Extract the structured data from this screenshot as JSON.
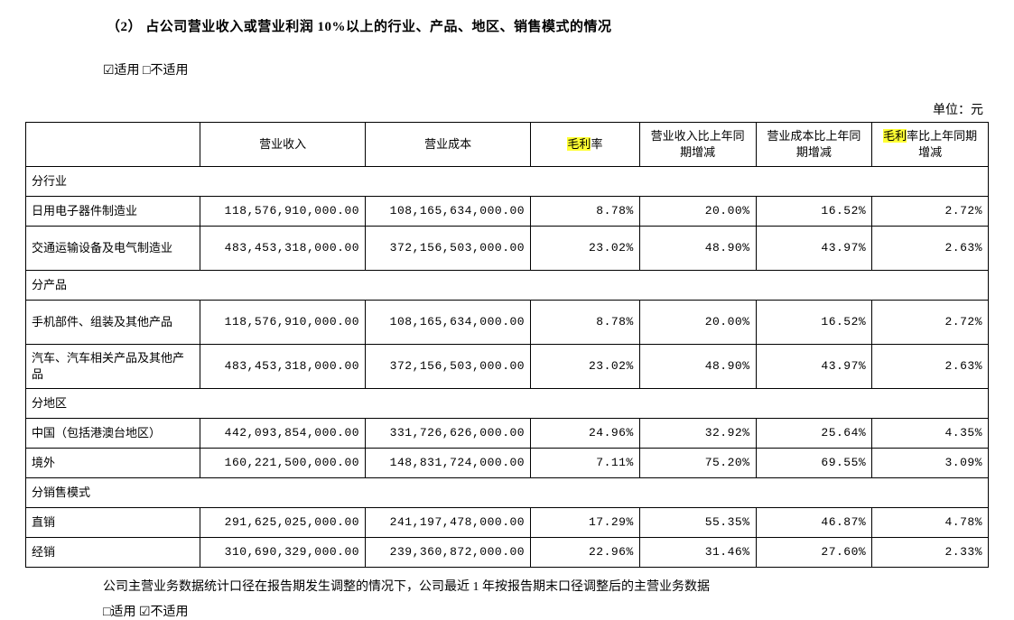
{
  "heading": "（2）  占公司营业收入或营业利润 10%以上的行业、产品、地区、销售模式的情况",
  "checkbox_line": "☑适用 □不适用",
  "unit": "单位：元",
  "table": {
    "header": {
      "c0": "",
      "c1": "营业收入",
      "c2": "营业成本",
      "c3_pre": "毛利",
      "c3_suf": "率",
      "c4": "营业收入比上年同期增减",
      "c5": "营业成本比上年同期增减",
      "c6_pre": "毛利",
      "c6_suf": "率比上年同期增减"
    },
    "sections": [
      {
        "title": "分行业",
        "rows": [
          {
            "label": "日用电子器件制造业",
            "twoline": false,
            "c1": "118,576,910,000.00",
            "c2": "108,165,634,000.00",
            "c3": "8.78%",
            "c4": "20.00%",
            "c5": "16.52%",
            "c6": "2.72%"
          },
          {
            "label": "交通运输设备及电气制造业",
            "twoline": true,
            "c1": "483,453,318,000.00",
            "c2": "372,156,503,000.00",
            "c3": "23.02%",
            "c4": "48.90%",
            "c5": "43.97%",
            "c6": "2.63%"
          }
        ]
      },
      {
        "title": "分产品",
        "rows": [
          {
            "label": "手机部件、组装及其他产品",
            "twoline": true,
            "c1": "118,576,910,000.00",
            "c2": "108,165,634,000.00",
            "c3": "8.78%",
            "c4": "20.00%",
            "c5": "16.52%",
            "c6": "2.72%"
          },
          {
            "label": "汽车、汽车相关产品及其他产品",
            "twoline": true,
            "c1": "483,453,318,000.00",
            "c2": "372,156,503,000.00",
            "c3": "23.02%",
            "c4": "48.90%",
            "c5": "43.97%",
            "c6": "2.63%"
          }
        ]
      },
      {
        "title": "分地区",
        "rows": [
          {
            "label": "中国（包括港澳台地区）",
            "twoline": false,
            "c1": "442,093,854,000.00",
            "c2": "331,726,626,000.00",
            "c3": "24.96%",
            "c4": "32.92%",
            "c5": "25.64%",
            "c6": "4.35%"
          },
          {
            "label": "境外",
            "twoline": false,
            "c1": "160,221,500,000.00",
            "c2": "148,831,724,000.00",
            "c3": "7.11%",
            "c4": "75.20%",
            "c5": "69.55%",
            "c6": "3.09%"
          }
        ]
      },
      {
        "title": "分销售模式",
        "rows": [
          {
            "label": "直销",
            "twoline": false,
            "c1": "291,625,025,000.00",
            "c2": "241,197,478,000.00",
            "c3": "17.29%",
            "c4": "55.35%",
            "c5": "46.87%",
            "c6": "4.78%"
          },
          {
            "label": "经销",
            "twoline": false,
            "c1": "310,690,329,000.00",
            "c2": "239,360,872,000.00",
            "c3": "22.96%",
            "c4": "31.46%",
            "c5": "27.60%",
            "c6": "2.33%"
          }
        ]
      }
    ]
  },
  "footnote1": "公司主营业务数据统计口径在报告期发生调整的情况下，公司最近 1 年按报告期末口径调整后的主营业务数据",
  "footnote2": "□适用 ☑不适用"
}
